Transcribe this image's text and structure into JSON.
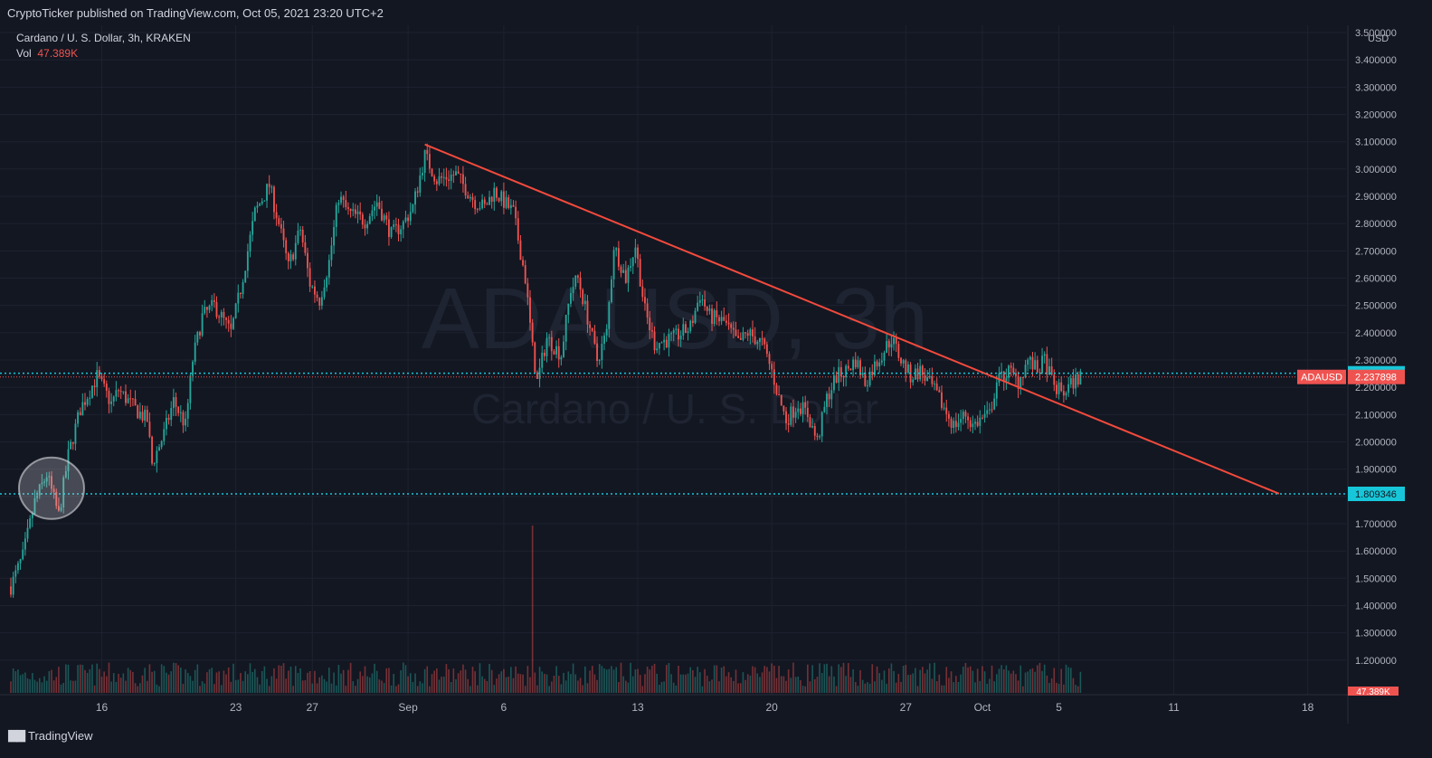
{
  "header": {
    "publisher_text": "CryptoTicker published on TradingView.com, Oct 05, 2021 23:20 UTC+2"
  },
  "legend": {
    "symbol_line": "Cardano / U. S. Dollar, 3h, KRAKEN",
    "vol_label": "Vol",
    "vol_value": "47.389K"
  },
  "watermark": {
    "ticker": "ADAUSD, 3h",
    "description": "Cardano / U. S. Dollar"
  },
  "footer": {
    "brand": "TradingView"
  },
  "colors": {
    "background": "#131722",
    "up": "#26a69a",
    "down": "#ef5350",
    "trendline": "#f24a3c",
    "level": "#17c7d9",
    "text": "#b2b5be"
  },
  "chart_data": {
    "type": "candlestick",
    "symbol": "ADAUSD",
    "interval": "3h",
    "exchange": "KRAKEN",
    "y_axis": {
      "currency_label": "USD",
      "ylim": [
        1.08,
        3.52
      ],
      "ticks": [
        "3.500000",
        "3.400000",
        "3.300000",
        "3.200000",
        "3.100000",
        "3.000000",
        "2.900000",
        "2.800000",
        "2.700000",
        "2.600000",
        "2.500000",
        "2.400000",
        "2.300000",
        "2.200000",
        "2.100000",
        "2.000000",
        "1.900000",
        "1.800000",
        "1.700000",
        "1.600000",
        "1.500000",
        "1.400000",
        "1.300000",
        "1.200000"
      ]
    },
    "x_axis": {
      "range": [
        "2021-08-11T06:00",
        "2021-10-20T00:00"
      ],
      "ticks": [
        {
          "date": "2021-08-16",
          "label": "16"
        },
        {
          "date": "2021-08-23",
          "label": "23"
        },
        {
          "date": "2021-08-27",
          "label": "27"
        },
        {
          "date": "2021-09-01",
          "label": "Sep"
        },
        {
          "date": "2021-09-06",
          "label": "6"
        },
        {
          "date": "2021-09-13",
          "label": "13"
        },
        {
          "date": "2021-09-20",
          "label": "20"
        },
        {
          "date": "2021-09-27",
          "label": "27"
        },
        {
          "date": "2021-10-01",
          "label": "Oct"
        },
        {
          "date": "2021-10-05",
          "label": "5"
        },
        {
          "date": "2021-10-11",
          "label": "11"
        },
        {
          "date": "2021-10-18",
          "label": "18"
        }
      ]
    },
    "price_path": [
      [
        "2021-08-11T06:00",
        1.47
      ],
      [
        "2021-08-11T21:00",
        1.58
      ],
      [
        "2021-08-12T12:00",
        1.78
      ],
      [
        "2021-08-13T03:00",
        1.88
      ],
      [
        "2021-08-13T18:00",
        1.73
      ],
      [
        "2021-08-14T06:00",
        1.95
      ],
      [
        "2021-08-14T21:00",
        2.12
      ],
      [
        "2021-08-15T18:00",
        2.24
      ],
      [
        "2021-08-16T12:00",
        2.14
      ],
      [
        "2021-08-16T21:00",
        2.19
      ],
      [
        "2021-08-17T18:00",
        2.12
      ],
      [
        "2021-08-18T09:00",
        2.08
      ],
      [
        "2021-08-18T15:00",
        1.92
      ],
      [
        "2021-08-19T06:00",
        2.03
      ],
      [
        "2021-08-19T18:00",
        2.15
      ],
      [
        "2021-08-20T09:00",
        2.06
      ],
      [
        "2021-08-20T18:00",
        2.3
      ],
      [
        "2021-08-21T06:00",
        2.46
      ],
      [
        "2021-08-21T21:00",
        2.5
      ],
      [
        "2021-08-22T18:00",
        2.4
      ],
      [
        "2021-08-23T06:00",
        2.56
      ],
      [
        "2021-08-23T15:00",
        2.7
      ],
      [
        "2021-08-24T00:00",
        2.84
      ],
      [
        "2021-08-24T18:00",
        2.94
      ],
      [
        "2021-08-25T06:00",
        2.8
      ],
      [
        "2021-08-25T18:00",
        2.64
      ],
      [
        "2021-08-26T09:00",
        2.78
      ],
      [
        "2021-08-26T21:00",
        2.58
      ],
      [
        "2021-08-27T09:00",
        2.52
      ],
      [
        "2021-08-27T21:00",
        2.66
      ],
      [
        "2021-08-28T09:00",
        2.9
      ],
      [
        "2021-08-28T21:00",
        2.84
      ],
      [
        "2021-08-29T18:00",
        2.81
      ],
      [
        "2021-08-30T09:00",
        2.88
      ],
      [
        "2021-08-31T03:00",
        2.76
      ],
      [
        "2021-08-31T18:00",
        2.8
      ],
      [
        "2021-09-01T06:00",
        2.86
      ],
      [
        "2021-09-01T21:00",
        3.05
      ],
      [
        "2021-09-02T12:00",
        2.96
      ],
      [
        "2021-09-03T12:00",
        2.98
      ],
      [
        "2021-09-04T12:00",
        2.88
      ],
      [
        "2021-09-05T00:00",
        2.86
      ],
      [
        "2021-09-05T12:00",
        2.92
      ],
      [
        "2021-09-06T12:00",
        2.84
      ],
      [
        "2021-09-07T03:00",
        2.6
      ],
      [
        "2021-09-07T12:00",
        2.34
      ],
      [
        "2021-09-07T18:00",
        2.22
      ],
      [
        "2021-09-08T06:00",
        2.38
      ],
      [
        "2021-09-09T00:00",
        2.32
      ],
      [
        "2021-09-09T12:00",
        2.56
      ],
      [
        "2021-09-09T21:00",
        2.6
      ],
      [
        "2021-09-10T12:00",
        2.42
      ],
      [
        "2021-09-10T21:00",
        2.3
      ],
      [
        "2021-09-11T09:00",
        2.4
      ],
      [
        "2021-09-11T18:00",
        2.72
      ],
      [
        "2021-09-12T09:00",
        2.6
      ],
      [
        "2021-09-12T21:00",
        2.72
      ],
      [
        "2021-09-13T09:00",
        2.48
      ],
      [
        "2021-09-13T21:00",
        2.36
      ],
      [
        "2021-09-14T21:00",
        2.38
      ],
      [
        "2021-09-15T18:00",
        2.42
      ],
      [
        "2021-09-16T06:00",
        2.54
      ],
      [
        "2021-09-16T18:00",
        2.46
      ],
      [
        "2021-09-17T12:00",
        2.44
      ],
      [
        "2021-09-18T06:00",
        2.36
      ],
      [
        "2021-09-18T18:00",
        2.4
      ],
      [
        "2021-09-19T12:00",
        2.36
      ],
      [
        "2021-09-20T00:00",
        2.26
      ],
      [
        "2021-09-20T09:00",
        2.16
      ],
      [
        "2021-09-20T18:00",
        2.08
      ],
      [
        "2021-09-21T09:00",
        2.14
      ],
      [
        "2021-09-21T21:00",
        2.1
      ],
      [
        "2021-09-22T09:00",
        2.0
      ],
      [
        "2021-09-22T21:00",
        2.16
      ],
      [
        "2021-09-23T09:00",
        2.24
      ],
      [
        "2021-09-23T21:00",
        2.26
      ],
      [
        "2021-09-24T09:00",
        2.3
      ],
      [
        "2021-09-24T21:00",
        2.22
      ],
      [
        "2021-09-25T09:00",
        2.28
      ],
      [
        "2021-09-26T06:00",
        2.38
      ],
      [
        "2021-09-26T18:00",
        2.3
      ],
      [
        "2021-09-27T06:00",
        2.24
      ],
      [
        "2021-09-27T18:00",
        2.26
      ],
      [
        "2021-09-28T09:00",
        2.2
      ],
      [
        "2021-09-28T21:00",
        2.14
      ],
      [
        "2021-09-29T12:00",
        2.06
      ],
      [
        "2021-09-30T03:00",
        2.1
      ],
      [
        "2021-09-30T12:00",
        2.06
      ],
      [
        "2021-09-30T21:00",
        2.08
      ],
      [
        "2021-10-01T09:00",
        2.1
      ],
      [
        "2021-10-01T18:00",
        2.22
      ],
      [
        "2021-10-02T09:00",
        2.26
      ],
      [
        "2021-10-02T21:00",
        2.22
      ],
      [
        "2021-10-03T09:00",
        2.3
      ],
      [
        "2021-10-03T21:00",
        2.26
      ],
      [
        "2021-10-04T06:00",
        2.3
      ],
      [
        "2021-10-04T18:00",
        2.2
      ],
      [
        "2021-10-05T06:00",
        2.18
      ],
      [
        "2021-10-05T18:00",
        2.22
      ],
      [
        "2021-10-06T03:00",
        2.24
      ]
    ],
    "volume_peak": "2021-09-07T12:00",
    "trendline": {
      "from": {
        "x": "2021-09-01T21:00",
        "y": 3.09
      },
      "to": {
        "x": "2021-10-16T12:00",
        "y": 1.81
      }
    },
    "horizontal_levels": [
      {
        "label": "2.251314",
        "y": 2.251314,
        "style": "dotted"
      },
      {
        "label": "1.809346",
        "y": 1.809346,
        "style": "dotted"
      }
    ],
    "current_price": {
      "label": "ADAUSD",
      "value_label": "2.237898",
      "y": 2.237898
    },
    "volume_axis_label": "47.389K",
    "highlight_circle": {
      "x": "2021-08-13T09:00",
      "y": 1.83
    }
  }
}
